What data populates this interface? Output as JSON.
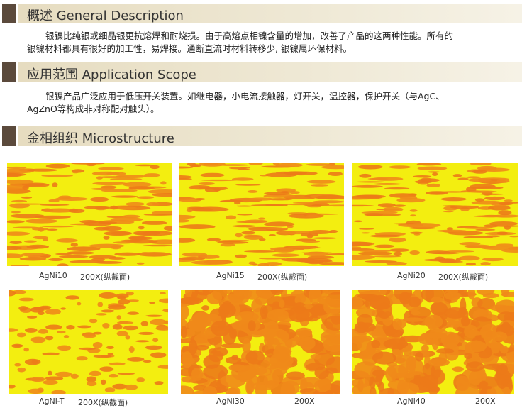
{
  "sections": [
    {
      "title": "概述 General Description",
      "lines": [
        "银镍比纯银或细晶银更抗熔焊和耐烧损。由于高熔点相镍含量的增加，改善了产品的这两种性能。所有的",
        "银镍材料都具有很好的加工性，易焊接。通断直流时材料转移少, 银镍属环保材料。"
      ]
    },
    {
      "title": "应用范围 Application Scope",
      "lines": [
        "银镍产品广泛应用于低压开关装置。如继电器，小电流接触器，灯开关，温控器，保护开关（与AgC、",
        "AgZnO等构成非对称配对触头）。"
      ]
    },
    {
      "title": "金相组织 Microstructure",
      "lines": []
    }
  ],
  "images": [
    {
      "name": "AgNi10",
      "caption": "200X(纵截面)"
    },
    {
      "name": "AgNi15",
      "caption": "200X(纵截面)"
    },
    {
      "name": "AgNi20",
      "caption": "200X(纵截面)"
    },
    {
      "name": "AgNi-T",
      "caption": "200X(纵截面)"
    },
    {
      "name": "AgNi30",
      "caption": "200X"
    },
    {
      "name": "AgNi40",
      "caption": "200X"
    }
  ]
}
